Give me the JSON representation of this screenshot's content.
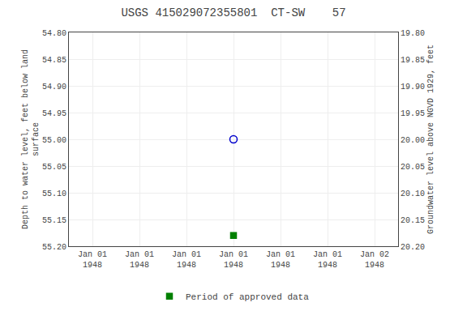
{
  "chart_data": {
    "type": "scatter",
    "title": "USGS 415029072355801  CT-SW    57",
    "ylabel": "Depth to water level, feet below land\nsurface",
    "y2label": "Groundwater level above NGVD 1929, feet",
    "categories": [
      "Jan 01\n1948",
      "Jan 01\n1948",
      "Jan 01\n1948",
      "Jan 01\n1948",
      "Jan 01\n1948",
      "Jan 01\n1948",
      "Jan 02\n1948"
    ],
    "series": [
      {
        "color": "#0000cc",
        "marker": "circle-open",
        "values": [
          null,
          null,
          null,
          55.0,
          null,
          null,
          null
        ]
      },
      {
        "name": "Period of approved data",
        "color": "#008000",
        "marker": "square",
        "values": [
          null,
          null,
          null,
          55.18,
          null,
          null,
          null
        ]
      }
    ],
    "ylim": [
      55.2,
      54.8
    ],
    "yticks": [
      {
        "value": 54.8,
        "label": "54.80"
      },
      {
        "value": 54.85,
        "label": "54.85"
      },
      {
        "value": 54.9,
        "label": "54.90"
      },
      {
        "value": 54.95,
        "label": "54.95"
      },
      {
        "value": 55.0,
        "label": "55.00"
      },
      {
        "value": 55.05,
        "label": "55.05"
      },
      {
        "value": 55.1,
        "label": "55.10"
      },
      {
        "value": 55.15,
        "label": "55.15"
      },
      {
        "value": 55.2,
        "label": "55.20"
      }
    ],
    "y2lim": [
      20.2,
      19.8
    ],
    "y2ticks": [
      {
        "value": 19.8,
        "label": "19.80"
      },
      {
        "value": 19.85,
        "label": "19.85"
      },
      {
        "value": 19.9,
        "label": "19.90"
      },
      {
        "value": 19.95,
        "label": "19.95"
      },
      {
        "value": 20.0,
        "label": "20.00"
      },
      {
        "value": 20.05,
        "label": "20.05"
      },
      {
        "value": 20.1,
        "label": "20.10"
      },
      {
        "value": 20.15,
        "label": "20.15"
      },
      {
        "value": 20.2,
        "label": "20.20"
      }
    ],
    "grid": true,
    "legend": "bottom"
  }
}
